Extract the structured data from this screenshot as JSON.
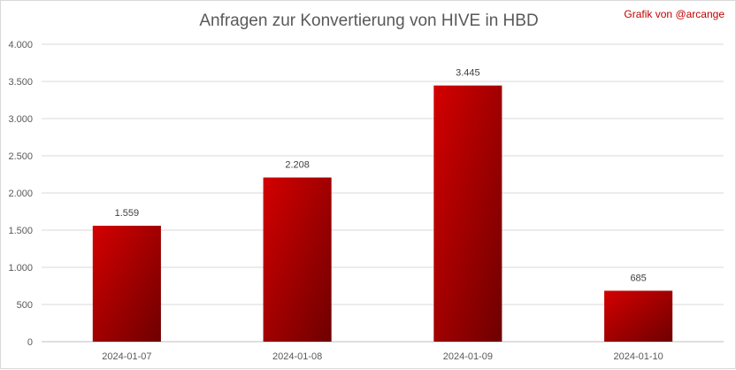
{
  "chart_data": {
    "type": "bar",
    "title": "Anfragen zur Konvertierung von HIVE in HBD",
    "credit": "Grafik von @arcange",
    "categories": [
      "2024-01-07",
      "2024-01-08",
      "2024-01-09",
      "2024-01-10"
    ],
    "values": [
      1559,
      2208,
      3445,
      685
    ],
    "value_labels": [
      "1.559",
      "2.208",
      "3.445",
      "685"
    ],
    "y_ticks": [
      0,
      500,
      1000,
      1500,
      2000,
      2500,
      3000,
      3500,
      4000
    ],
    "y_tick_labels": [
      "0",
      "500",
      "1.000",
      "1.500",
      "2.000",
      "2.500",
      "3.000",
      "3.500",
      "4.000"
    ],
    "ylim": [
      0,
      4000
    ],
    "xlabel": "",
    "ylabel": "",
    "grid": true,
    "legend": "none",
    "bar_color_light": "#d40000",
    "bar_color_dark": "#6e0000"
  }
}
